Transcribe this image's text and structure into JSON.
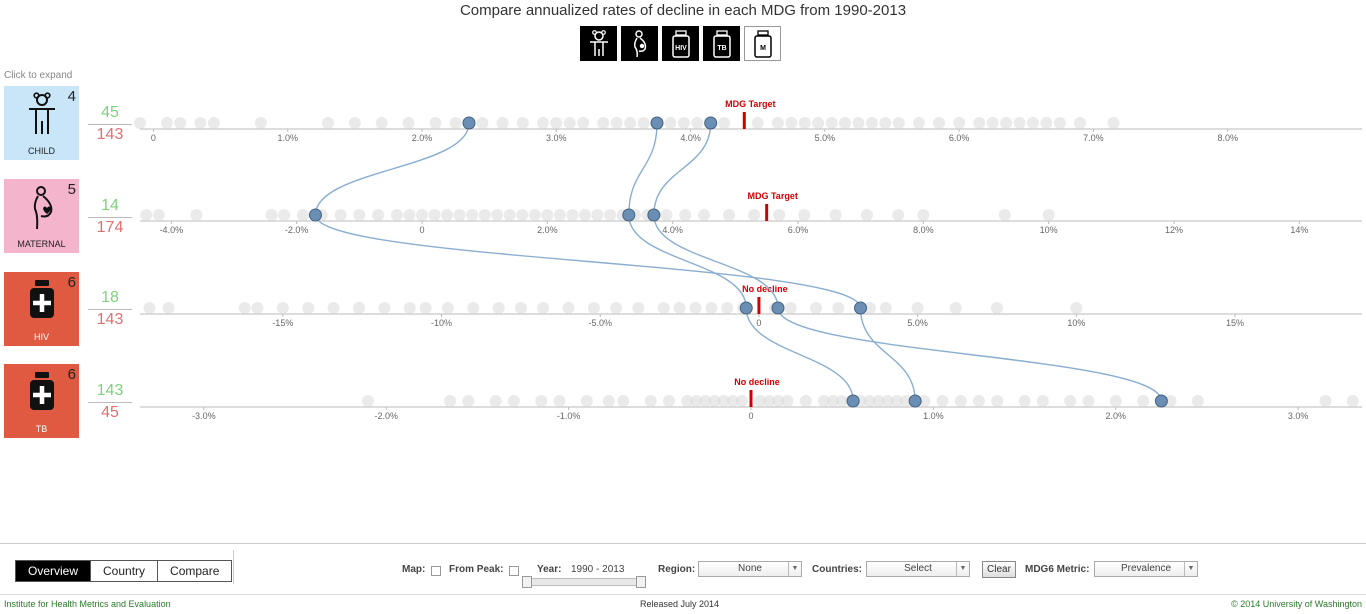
{
  "title": "Compare annualized rates of decline in each MDG from 1990-2013",
  "expand_hint": "Click to expand",
  "mdg_buttons": [
    {
      "name": "child",
      "icon": "child-icon",
      "label": ""
    },
    {
      "name": "maternal",
      "icon": "pregnant-woman-icon",
      "label": ""
    },
    {
      "name": "hiv",
      "icon": "medicine-bottle-icon",
      "label": "HIV"
    },
    {
      "name": "tb",
      "icon": "medicine-bottle-icon",
      "label": "TB"
    },
    {
      "name": "malaria",
      "icon": "medicine-bottle-icon",
      "label": "M"
    }
  ],
  "rows": [
    {
      "label": "CHILD",
      "rank": "4",
      "count_top": "45",
      "count_bottom": "143",
      "color": "#c8e6f8",
      "icon": "child-icon"
    },
    {
      "label": "MATERNAL",
      "rank": "5",
      "count_top": "14",
      "count_bottom": "174",
      "color": "#f4b4cc",
      "icon": "pregnant-woman-icon"
    },
    {
      "label": "HIV",
      "rank": "6",
      "count_top": "18",
      "count_bottom": "143",
      "color": "#e05a42",
      "icon": "medicine-bottle-icon"
    },
    {
      "label": "TB",
      "rank": "6",
      "count_top": "143",
      "count_bottom": "45",
      "color": "#e05a42",
      "icon": "medicine-bottle-icon"
    }
  ],
  "chart_data": {
    "type": "scatter",
    "title": "Compare annualized rates of decline in each MDG from 1990-2013",
    "grid": false,
    "rows": [
      {
        "name": "CHILD",
        "xlim": [
          -0.1,
          9.0
        ],
        "ticks": [
          0,
          1,
          2,
          3,
          4,
          5,
          6,
          7,
          8
        ],
        "tick_labels": [
          "0",
          "1.0%",
          "2.0%",
          "3.0%",
          "4.0%",
          "5.0%",
          "6.0%",
          "7.0%",
          "8.0%"
        ],
        "target": 4.4,
        "target_label": "MDG Target",
        "background_points": [
          -0.1,
          0.1,
          0.2,
          0.35,
          0.45,
          0.8,
          1.3,
          1.5,
          1.7,
          1.9,
          2.1,
          2.25,
          2.45,
          2.6,
          2.75,
          2.9,
          3.0,
          3.1,
          3.2,
          3.35,
          3.45,
          3.55,
          3.65,
          3.75,
          3.85,
          3.95,
          4.05,
          4.15,
          4.25,
          4.5,
          4.65,
          4.75,
          4.85,
          4.95,
          5.05,
          5.15,
          5.25,
          5.35,
          5.45,
          5.55,
          5.7,
          5.85,
          6.0,
          6.15,
          6.25,
          6.35,
          6.45,
          6.55,
          6.65,
          6.75,
          6.9,
          7.15
        ],
        "highlight_points": [
          2.35,
          3.75,
          4.15
        ]
      },
      {
        "name": "MATERNAL",
        "xlim": [
          -4.5,
          15.0
        ],
        "ticks": [
          -4,
          -2,
          0,
          2,
          4,
          6,
          8,
          10,
          12,
          14
        ],
        "tick_labels": [
          "-4.0%",
          "-2.0%",
          "0",
          "2.0%",
          "4.0%",
          "6.0%",
          "8.0%",
          "10%",
          "12%",
          "14%"
        ],
        "target": 5.5,
        "target_label": "MDG Target",
        "background_points": [
          -4.4,
          -4.2,
          -3.6,
          -2.4,
          -2.2,
          -1.9,
          -1.6,
          -1.3,
          -1.0,
          -0.7,
          -0.4,
          -0.2,
          0.0,
          0.2,
          0.4,
          0.6,
          0.8,
          1.0,
          1.2,
          1.4,
          1.6,
          1.8,
          2.0,
          2.2,
          2.4,
          2.6,
          2.8,
          3.0,
          3.2,
          3.4,
          3.6,
          3.9,
          4.2,
          4.5,
          4.9,
          5.3,
          5.7,
          6.1,
          6.6,
          7.1,
          7.6,
          8.0,
          9.3,
          10.0
        ],
        "highlight_points": [
          -1.7,
          3.3,
          3.7
        ]
      },
      {
        "name": "HIV",
        "xlim": [
          -19.5,
          19.0
        ],
        "ticks": [
          -15,
          -10,
          -5,
          0,
          5,
          10,
          15
        ],
        "tick_labels": [
          "-15%",
          "-10%",
          "-5.0%",
          "0",
          "5.0%",
          "10%",
          "15%"
        ],
        "target": 0,
        "target_label": "No decline",
        "background_points": [
          -19.2,
          -18.6,
          -16.2,
          -15.8,
          -15.0,
          -14.2,
          -13.4,
          -12.6,
          -11.8,
          -11.0,
          -10.5,
          -9.8,
          -9.0,
          -8.2,
          -7.5,
          -6.8,
          -6.0,
          -5.2,
          -4.5,
          -3.8,
          -3.0,
          -2.5,
          -2.0,
          -1.5,
          -1.0,
          -0.5,
          0.5,
          1.0,
          1.8,
          2.5,
          3.5,
          4.0,
          5.0,
          6.2,
          7.5,
          10.0
        ],
        "highlight_points": [
          -0.4,
          0.6,
          3.2
        ]
      },
      {
        "name": "TB",
        "xlim": [
          -3.35,
          3.35
        ],
        "ticks": [
          -3,
          -2,
          -1,
          0,
          1,
          2,
          3
        ],
        "tick_labels": [
          "-3.0%",
          "-2.0%",
          "-1.0%",
          "0",
          "1.0%",
          "2.0%",
          "3.0%"
        ],
        "target": 0,
        "target_label": "No decline",
        "background_points": [
          -2.1,
          -1.65,
          -1.55,
          -1.4,
          -1.3,
          -1.15,
          -1.05,
          -0.9,
          -0.78,
          -0.7,
          -0.55,
          -0.45,
          -0.35,
          -0.3,
          -0.25,
          -0.2,
          -0.15,
          -0.1,
          -0.05,
          0.05,
          0.1,
          0.15,
          0.2,
          0.3,
          0.4,
          0.45,
          0.5,
          0.55,
          0.6,
          0.65,
          0.7,
          0.75,
          0.8,
          0.85,
          0.95,
          1.05,
          1.15,
          1.25,
          1.35,
          1.5,
          1.6,
          1.75,
          1.85,
          2.0,
          2.15,
          2.3,
          2.45,
          3.15,
          3.3
        ],
        "highlight_points": [
          0.56,
          0.9,
          2.25
        ]
      }
    ],
    "links": [
      [
        2.35,
        -1.7,
        3.2,
        0.9
      ],
      [
        3.75,
        3.3,
        -0.4,
        0.56
      ],
      [
        4.15,
        3.7,
        0.6,
        2.25
      ]
    ]
  },
  "tabs": [
    "Overview",
    "Country",
    "Compare"
  ],
  "controls": {
    "map_label": "Map:",
    "from_peak_label": "From Peak:",
    "year_label": "Year:",
    "year_value": "1990 - 2013",
    "region_label": "Region:",
    "region_value": "None",
    "countries_label": "Countries:",
    "countries_value": "Select",
    "clear_label": "Clear",
    "metric_label": "MDG6 Metric:",
    "metric_value": "Prevalence"
  },
  "footer": {
    "left": "Institute for Health Metrics and Evaluation",
    "mid": "Released July 2014",
    "right": "© 2014 University of Washington"
  },
  "colors": {
    "highlight": "#6b8eb5",
    "link": "#8aaed0",
    "target": "#d00000",
    "background_dot": "#d8d8d8"
  }
}
